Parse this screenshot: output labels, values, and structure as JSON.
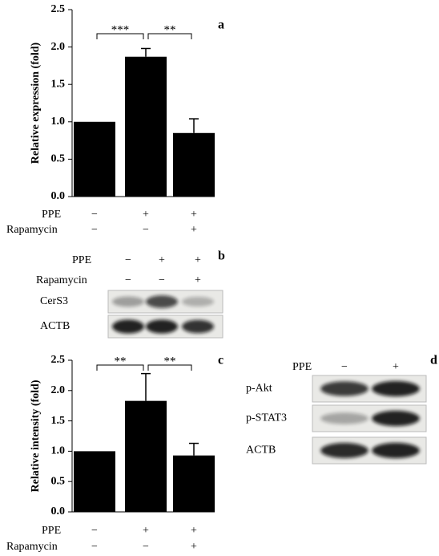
{
  "chart_data": [
    {
      "type": "bar",
      "panel": "a",
      "ylabel": "Relative expression (fold)",
      "values": [
        1.0,
        1.87,
        0.85
      ],
      "errors": [
        null,
        0.11,
        0.19
      ],
      "color": "#000000",
      "ylim": [
        0,
        2.5
      ],
      "yticks": [
        {
          "value": 0,
          "label": "0.0"
        },
        {
          "value": 0.5,
          "label": "0.5"
        },
        {
          "value": 1,
          "label": "1.0"
        },
        {
          "value": 1.5,
          "label": "1.5"
        },
        {
          "value": 2,
          "label": "2.0"
        },
        {
          "value": 2.5,
          "label": "2.5"
        }
      ],
      "treatments": [
        {
          "name": "PPE",
          "marks": [
            "−",
            "+",
            "+"
          ]
        },
        {
          "name": "Rapamycin",
          "marks": [
            "−",
            "−",
            "+"
          ]
        }
      ],
      "comparisons": [
        "***",
        "**"
      ]
    },
    {
      "type": "bar",
      "panel": "c",
      "ylabel": "Relative intensity (fold)",
      "values": [
        1.0,
        1.83,
        0.93
      ],
      "errors": [
        null,
        0.45,
        0.2
      ],
      "color": "#000000",
      "ylim": [
        0,
        2.5
      ],
      "yticks": [
        {
          "value": 0,
          "label": "0.0"
        },
        {
          "value": 0.5,
          "label": "0.5"
        },
        {
          "value": 1,
          "label": "1.0"
        },
        {
          "value": 1.5,
          "label": "1.5"
        },
        {
          "value": 2,
          "label": "2.0"
        },
        {
          "value": 2.5,
          "label": "2.5"
        }
      ],
      "treatments": [
        {
          "name": "PPE",
          "marks": [
            "−",
            "+",
            "+"
          ]
        },
        {
          "name": "Rapamycin",
          "marks": [
            "−",
            "−",
            "+"
          ]
        }
      ],
      "comparisons": [
        "**",
        "**"
      ]
    }
  ],
  "blots": [
    {
      "panel": "b",
      "treatments": [
        {
          "name": "PPE",
          "marks": [
            "−",
            "+",
            "+"
          ]
        },
        {
          "name": "Rapamycin",
          "marks": [
            "−",
            "−",
            "+"
          ]
        }
      ],
      "rows": [
        "CerS3",
        "ACTB"
      ]
    },
    {
      "panel": "d",
      "treatments": [
        {
          "name": "PPE",
          "marks": [
            "−",
            "+"
          ]
        }
      ],
      "rows": [
        "p-Akt",
        "p-STAT3",
        "ACTB"
      ]
    }
  ]
}
